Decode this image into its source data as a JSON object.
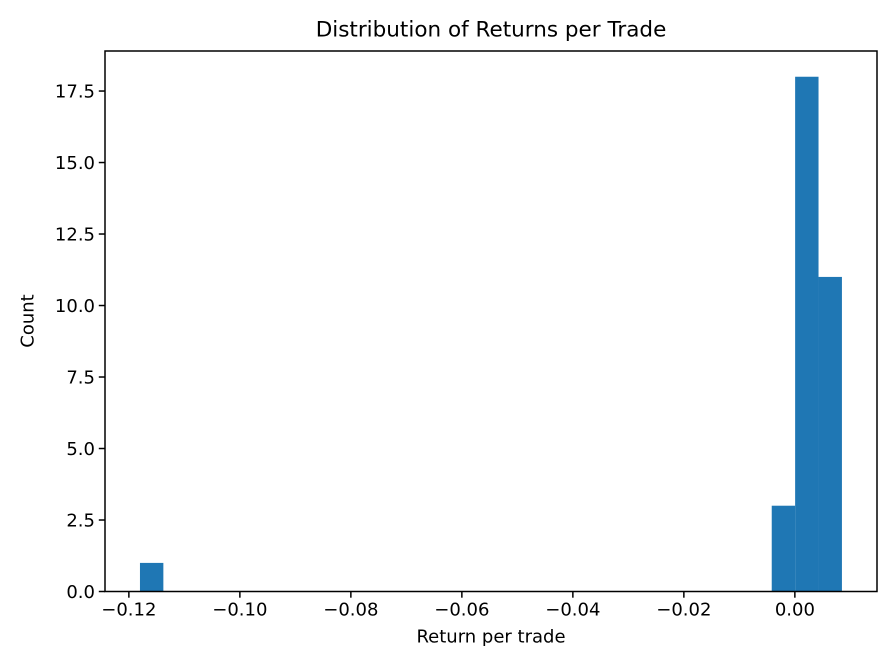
{
  "chart_data": {
    "type": "bar",
    "subtype": "histogram",
    "title": "Distribution of Returns per Trade",
    "xlabel": "Return per trade",
    "ylabel": "Count",
    "bar_color": "#1f77b4",
    "background_color": "#ffffff",
    "axis_color": "#000000",
    "grid": false,
    "legend": null,
    "bin_start": -0.118,
    "bin_width": 0.004216,
    "bin_count": 30,
    "counts": [
      1,
      0,
      0,
      0,
      0,
      0,
      0,
      0,
      0,
      0,
      0,
      0,
      0,
      0,
      0,
      0,
      0,
      0,
      0,
      0,
      0,
      0,
      0,
      0,
      0,
      0,
      0,
      3,
      18,
      11
    ],
    "xlim": [
      -0.1243,
      0.0148
    ],
    "ylim": [
      0,
      18.9
    ],
    "xticks": {
      "values": [
        -0.12,
        -0.1,
        -0.08,
        -0.06,
        -0.04,
        -0.02,
        0.0
      ],
      "labels": [
        "−0.12",
        "−0.10",
        "−0.08",
        "−0.06",
        "−0.04",
        "−0.02",
        "0.00"
      ]
    },
    "yticks": {
      "values": [
        0.0,
        2.5,
        5.0,
        7.5,
        10.0,
        12.5,
        15.0,
        17.5
      ],
      "labels": [
        "0.0",
        "2.5",
        "5.0",
        "7.5",
        "10.0",
        "12.5",
        "15.0",
        "17.5"
      ]
    }
  }
}
